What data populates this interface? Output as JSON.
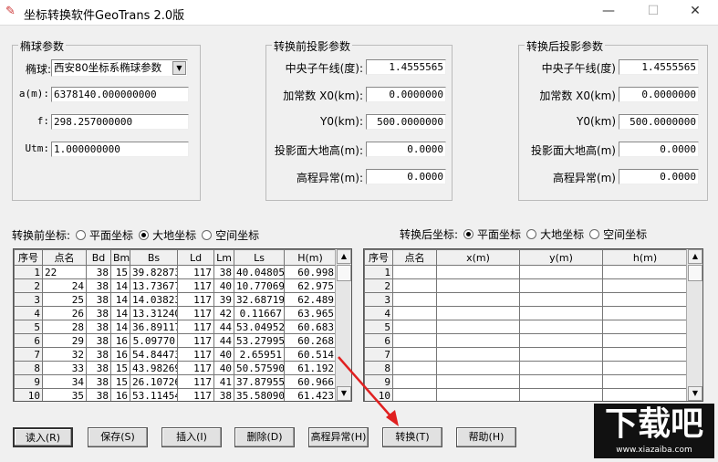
{
  "window": {
    "title": "坐标转换软件GeoTrans 2.0版",
    "minimize": "—",
    "maximize": "☐",
    "close": "✕"
  },
  "ellipsoid": {
    "group": "椭球参数",
    "type_label": "椭球:",
    "type_value": "西安80坐标系椭球参数",
    "a_label": "a(m):",
    "a_value": "6378140.000000000",
    "f_label": "f:",
    "f_value": "298.257000000",
    "utm_label": "Utm:",
    "utm_value": "1.000000000"
  },
  "before_proj": {
    "group": "转换前投影参数",
    "fields": [
      {
        "label": "中央子午线(度):",
        "value": "1.4555565"
      },
      {
        "label": "加常数 X0(km):",
        "value": "0.0000000"
      },
      {
        "label": "Y0(km):",
        "value": "500.0000000"
      },
      {
        "label": "投影面大地高(m):",
        "value": "0.0000"
      },
      {
        "label": "高程异常(m):",
        "value": "0.0000"
      }
    ]
  },
  "after_proj": {
    "group": "转换后投影参数",
    "fields": [
      {
        "label": "中央子午线(度)",
        "value": "1.4555565"
      },
      {
        "label": "加常数 X0(km)",
        "value": "0.0000000"
      },
      {
        "label": "Y0(km)",
        "value": "500.0000000"
      },
      {
        "label": "投影面大地高(m)",
        "value": "0.0000"
      },
      {
        "label": "高程异常(m)",
        "value": "0.0000"
      }
    ]
  },
  "before_coords": {
    "label": "转换前坐标:",
    "options": [
      "平面坐标",
      "大地坐标",
      "空间坐标"
    ],
    "selected": "大地坐标"
  },
  "after_coords": {
    "label": "转换后坐标:",
    "options": [
      "平面坐标",
      "大地坐标",
      "空间坐标"
    ],
    "selected": "平面坐标"
  },
  "left_table": {
    "headers": [
      "序号",
      "点名",
      "Bd",
      "Bm",
      "Bs",
      "Ld",
      "Lm",
      "Ls",
      "H(m)"
    ],
    "rows": [
      [
        "1",
        "22",
        "38",
        "15",
        "39.82873",
        "117",
        "38",
        "40.04805",
        "60.998"
      ],
      [
        "2",
        "24",
        "38",
        "14",
        "13.73677",
        "117",
        "40",
        "10.77069",
        "62.975"
      ],
      [
        "3",
        "25",
        "38",
        "14",
        "14.03823",
        "117",
        "39",
        "32.68719",
        "62.489"
      ],
      [
        "4",
        "26",
        "38",
        "14",
        "13.31240",
        "117",
        "42",
        "0.11667",
        "63.965"
      ],
      [
        "5",
        "28",
        "38",
        "14",
        "36.89117",
        "117",
        "44",
        "53.04952",
        "60.683"
      ],
      [
        "6",
        "29",
        "38",
        "16",
        "5.09770",
        "117",
        "44",
        "53.27995",
        "60.268"
      ],
      [
        "7",
        "32",
        "38",
        "16",
        "54.84473",
        "117",
        "40",
        "2.65951",
        "60.514"
      ],
      [
        "8",
        "33",
        "38",
        "15",
        "43.98269",
        "117",
        "40",
        "50.57590",
        "61.192"
      ],
      [
        "9",
        "34",
        "38",
        "15",
        "26.10726",
        "117",
        "41",
        "37.87955",
        "60.966"
      ],
      [
        "10",
        "35",
        "38",
        "16",
        "53.11454",
        "117",
        "38",
        "35.58090",
        "61.423"
      ]
    ]
  },
  "right_table": {
    "headers": [
      "序号",
      "点名",
      "x(m)",
      "y(m)",
      "h(m)"
    ],
    "rows": [
      "1",
      "2",
      "3",
      "4",
      "5",
      "6",
      "7",
      "8",
      "9",
      "10"
    ]
  },
  "buttons": [
    "读入(R)",
    "保存(S)",
    "插入(I)",
    "删除(D)",
    "高程异常(H)",
    "转换(T)",
    "帮助(H)"
  ],
  "watermark": {
    "text": "下载吧",
    "url": "www.xiazaiba.com"
  }
}
